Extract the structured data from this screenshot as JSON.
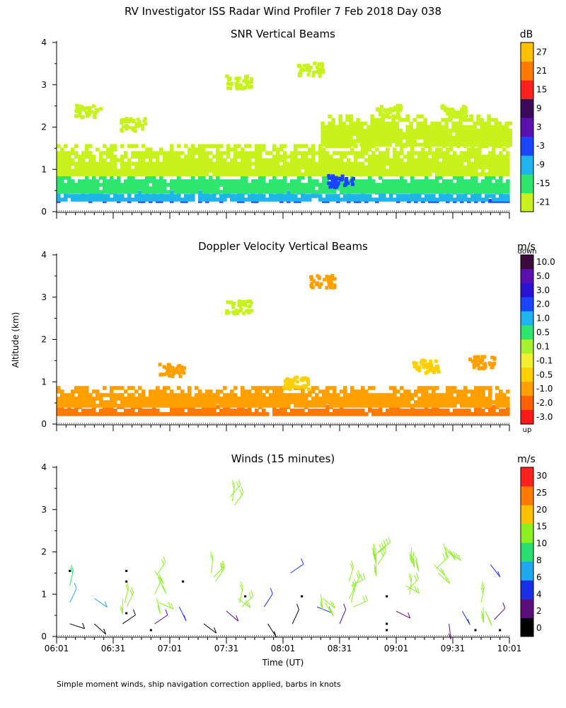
{
  "figure": {
    "title": "RV Investigator ISS Radar Wind Profiler   7 Feb 2018 Day 038",
    "ylabel": "Altitude (km)",
    "xlabel": "Time (UT)",
    "footnote": "Simple moment winds, ship navigation correction applied, barbs in knots",
    "time_ticks": [
      "06:01",
      "06:31",
      "07:01",
      "07:31",
      "08:01",
      "08:31",
      "09:01",
      "09:31",
      "10:01"
    ]
  },
  "chart_data": [
    {
      "type": "heatmap",
      "title": "SNR Vertical Beams",
      "units": "dB",
      "xrange_minutes": [
        0,
        240
      ],
      "ylim": [
        0,
        4
      ],
      "yticks": [
        "0",
        "1",
        "2",
        "3",
        "4"
      ],
      "colorbar": {
        "labels": [
          "-21",
          "-15",
          "-9",
          "-3",
          "3",
          "9",
          "15",
          "21",
          "27"
        ],
        "colors": [
          "#c8f21e",
          "#2ee66e",
          "#1fb4f0",
          "#1a44ff",
          "#5a0fb0",
          "#3c0a5a",
          "#ff2020",
          "#ff7a00",
          "#ffc000"
        ]
      },
      "layers": [
        {
          "alt_from": 0.22,
          "alt_to": 0.3,
          "color": "#1a44ff",
          "time_from": 0,
          "time_to": 240
        },
        {
          "alt_from": 0.3,
          "alt_to": 0.5,
          "color": "#1fb4f0",
          "time_from": 0,
          "time_to": 240
        },
        {
          "alt_from": 0.5,
          "alt_to": 0.85,
          "color": "#2ee66e",
          "time_from": 0,
          "time_to": 240
        },
        {
          "alt_from": 0.85,
          "alt_to": 1.6,
          "color": "#c8f21e",
          "time_from": 0,
          "time_to": 240
        },
        {
          "alt_from": 1.6,
          "alt_to": 2.3,
          "color": "#c8f21e",
          "time_from": 140,
          "time_to": 240
        }
      ],
      "patches": [
        {
          "time": 96,
          "alt": 3.1,
          "color": "#c8f21e"
        },
        {
          "time": 134,
          "alt": 3.4,
          "color": "#c8f21e"
        },
        {
          "time": 175,
          "alt": 2.4,
          "color": "#c8f21e"
        },
        {
          "time": 16,
          "alt": 2.4,
          "color": "#c8f21e"
        },
        {
          "time": 40,
          "alt": 2.1,
          "color": "#c8f21e"
        },
        {
          "time": 210,
          "alt": 2.4,
          "color": "#c8f21e"
        },
        {
          "time": 150,
          "alt": 0.75,
          "color": "#1a44ff"
        }
      ]
    },
    {
      "type": "heatmap",
      "title": "Doppler Velocity Vertical Beams",
      "units": "m/s",
      "xrange_minutes": [
        0,
        240
      ],
      "ylim": [
        0,
        4
      ],
      "yticks": [
        "0",
        "1",
        "2",
        "3",
        "4"
      ],
      "colorbar": {
        "top_label": "down",
        "bottom_label": "up",
        "labels": [
          "10.0",
          "5.0",
          "3.0",
          "2.0",
          "1.0",
          "0.5",
          "0.1",
          "-0.1",
          "-0.5",
          "-1.0",
          "-2.0",
          "-3.0"
        ],
        "colors": [
          "#3c0a3c",
          "#5a0fb0",
          "#2a10d0",
          "#1a44ff",
          "#1fb4f0",
          "#2ee66e",
          "#a8f030",
          "#f0f030",
          "#ffd000",
          "#ffa000",
          "#ff6000",
          "#ff1a1a"
        ]
      },
      "layers": [
        {
          "alt_from": 0.2,
          "alt_to": 0.45,
          "color": "#ff7a00",
          "time_from": 0,
          "time_to": 240
        },
        {
          "alt_from": 0.45,
          "alt_to": 0.9,
          "color": "#ffa000",
          "time_from": 0,
          "time_to": 240
        }
      ],
      "patches": [
        {
          "time": 60,
          "alt": 1.3,
          "color": "#ffa000"
        },
        {
          "time": 126,
          "alt": 1.0,
          "color": "#ffd000"
        },
        {
          "time": 195,
          "alt": 1.4,
          "color": "#ffd000"
        },
        {
          "time": 225,
          "alt": 1.5,
          "color": "#ffa000"
        },
        {
          "time": 140,
          "alt": 3.4,
          "color": "#ffa000"
        },
        {
          "time": 96,
          "alt": 2.8,
          "color": "#c8f21e"
        }
      ]
    },
    {
      "type": "scatter",
      "title": "Winds (15 minutes)",
      "units": "m/s",
      "xrange_minutes": [
        0,
        240
      ],
      "ylim": [
        0,
        4
      ],
      "yticks": [
        "0",
        "1",
        "2",
        "3",
        "4"
      ],
      "colorbar": {
        "labels": [
          "0",
          "2",
          "4",
          "6",
          "8",
          "10",
          "15",
          "20",
          "25",
          "30"
        ],
        "colors": [
          "#000000",
          "#5a0f7a",
          "#1a30e6",
          "#1fa8f0",
          "#28e070",
          "#8cf01e",
          "#ffc000",
          "#ff7a00",
          "#ff2020"
        ]
      },
      "barbs": [
        {
          "time": 7,
          "alt": 0.3,
          "speed": 1
        },
        {
          "time": 7,
          "alt": 0.8,
          "speed": 7
        },
        {
          "time": 7,
          "alt": 1.2,
          "speed": 8
        },
        {
          "time": 20,
          "alt": 0.3,
          "speed": 1
        },
        {
          "time": 20,
          "alt": 0.9,
          "speed": 7
        },
        {
          "time": 35,
          "alt": 0.3,
          "speed": 1
        },
        {
          "time": 35,
          "alt": 0.9,
          "speed": 10
        },
        {
          "time": 52,
          "alt": 0.3,
          "speed": 2
        },
        {
          "time": 52,
          "alt": 1.0,
          "speed": 11
        },
        {
          "time": 52,
          "alt": 1.55,
          "speed": 12
        },
        {
          "time": 65,
          "alt": 0.7,
          "speed": 5
        },
        {
          "time": 78,
          "alt": 0.3,
          "speed": 1
        },
        {
          "time": 82,
          "alt": 1.5,
          "speed": 12
        },
        {
          "time": 90,
          "alt": 0.6,
          "speed": 2
        },
        {
          "time": 96,
          "alt": 0.9,
          "speed": 11
        },
        {
          "time": 92,
          "alt": 3.3,
          "speed": 11
        },
        {
          "time": 110,
          "alt": 0.7,
          "speed": 4
        },
        {
          "time": 112,
          "alt": 0.3,
          "speed": 1
        },
        {
          "time": 124,
          "alt": 1.5,
          "speed": 5
        },
        {
          "time": 125,
          "alt": 0.3,
          "speed": 1
        },
        {
          "time": 138,
          "alt": 0.7,
          "speed": 4
        },
        {
          "time": 140,
          "alt": 1.0,
          "speed": 11
        },
        {
          "time": 150,
          "alt": 0.3,
          "speed": 2
        },
        {
          "time": 155,
          "alt": 0.9,
          "speed": 11
        },
        {
          "time": 155,
          "alt": 1.3,
          "speed": 10
        },
        {
          "time": 168,
          "alt": 1.9,
          "speed": 13
        },
        {
          "time": 168,
          "alt": 2.2,
          "speed": 13
        },
        {
          "time": 180,
          "alt": 0.6,
          "speed": 2
        },
        {
          "time": 185,
          "alt": 1.2,
          "speed": 11
        },
        {
          "time": 188,
          "alt": 2.1,
          "speed": 13
        },
        {
          "time": 200,
          "alt": 1.7,
          "speed": 11
        },
        {
          "time": 205,
          "alt": 2.2,
          "speed": 13
        },
        {
          "time": 208,
          "alt": 0.3,
          "speed": 2
        },
        {
          "time": 215,
          "alt": 0.6,
          "speed": 5
        },
        {
          "time": 225,
          "alt": 0.8,
          "speed": 13
        },
        {
          "time": 232,
          "alt": 0.4,
          "speed": 3
        },
        {
          "time": 230,
          "alt": 1.7,
          "speed": 5
        }
      ],
      "calm_points": [
        {
          "time": 7,
          "alt": 1.55
        },
        {
          "time": 37,
          "alt": 1.55
        },
        {
          "time": 37,
          "alt": 1.3
        },
        {
          "time": 37,
          "alt": 0.55
        },
        {
          "time": 50,
          "alt": 0.15
        },
        {
          "time": 67,
          "alt": 1.3
        },
        {
          "time": 100,
          "alt": 0.95
        },
        {
          "time": 130,
          "alt": 0.95
        },
        {
          "time": 175,
          "alt": 0.95
        },
        {
          "time": 175,
          "alt": 0.3
        },
        {
          "time": 175,
          "alt": 0.15
        },
        {
          "time": 222,
          "alt": 0.15
        },
        {
          "time": 235,
          "alt": 0.15
        }
      ]
    }
  ]
}
